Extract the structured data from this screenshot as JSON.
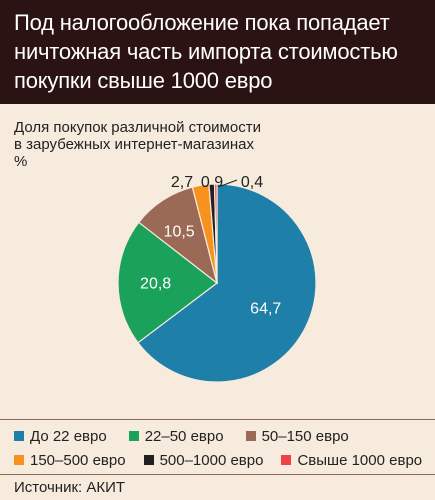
{
  "header": {
    "title_lines": [
      "Под налогообложение пока попадает",
      "ничтожная часть импорта стоимостью",
      "покупки свыше 1000 евро"
    ]
  },
  "chart_data": {
    "type": "pie",
    "title": "Под налогообложение пока попадает ничтожная часть импорта стоимостью покупки свыше 1000 евро",
    "subtitle_lines": [
      "Доля покупок различной стоимости",
      "в зарубежных интернет-магазинах",
      "%"
    ],
    "slices": [
      {
        "label": "До 22 евро",
        "value": 64.7,
        "display": "64,7",
        "color": "#1e7fa8"
      },
      {
        "label": "22–50 евро",
        "value": 20.8,
        "display": "20,8",
        "color": "#1aa15a"
      },
      {
        "label": "50–150 евро",
        "value": 10.5,
        "display": "10,5",
        "color": "#9a6a56"
      },
      {
        "label": "150–500 евро",
        "value": 2.7,
        "display": "2,7",
        "color": "#f7921e"
      },
      {
        "label": "500–1000 евро",
        "value": 0.9,
        "display": "0,9",
        "color": "#231f20"
      },
      {
        "label": "Свыше 1000 евро",
        "value": 0.4,
        "display": "0,4",
        "color": "#ee4046"
      }
    ],
    "legend_position": "bottom"
  },
  "source": "Источник: АКИТ"
}
